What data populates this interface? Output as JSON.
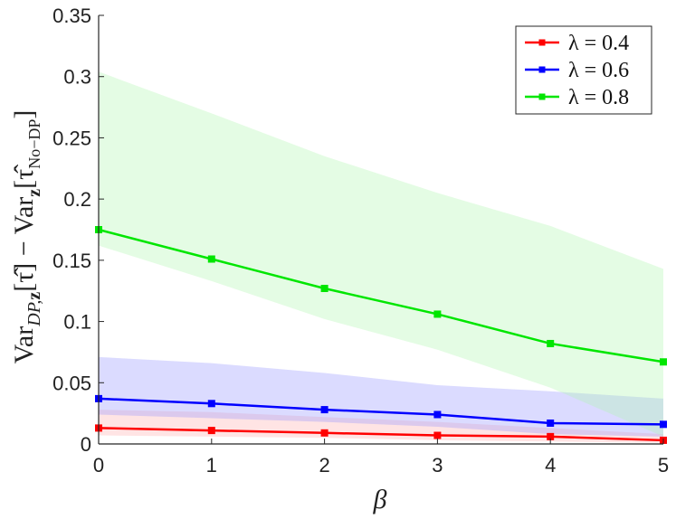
{
  "chart_data": {
    "type": "line",
    "xlabel": "β",
    "ylabel": "Var_{DP,z}[τ̂] − Var_z[τ̂_{No−DP}]",
    "ylabel_parts": {
      "main1": "Var",
      "sub1": "DP,",
      "sub1b": "z",
      "mid": "[τ̂] − Var",
      "sub2": "z",
      "main2": "[τ̂",
      "sub3": "No−DP",
      "end": "]"
    },
    "xlim": [
      0,
      5
    ],
    "ylim": [
      0,
      0.35
    ],
    "xticks": [
      0,
      1,
      2,
      3,
      4,
      5
    ],
    "xtick_labels": [
      "0",
      "1",
      "2",
      "3",
      "4",
      "5"
    ],
    "yticks": [
      0,
      0.05,
      0.1,
      0.15,
      0.2,
      0.25,
      0.3,
      0.35
    ],
    "ytick_labels": [
      "0",
      "0.05",
      "0.1",
      "0.15",
      "0.2",
      "0.25",
      "0.3",
      "0.35"
    ],
    "grid": false,
    "legend_position": "top-right",
    "x": [
      0,
      1,
      2,
      3,
      4,
      5
    ],
    "series": [
      {
        "name": "λ = 0.4",
        "color": "#ff0000",
        "band_color": "#ffb3b3",
        "values": [
          0.013,
          0.011,
          0.009,
          0.007,
          0.006,
          0.003
        ],
        "lower": [
          0.007,
          0.006,
          0.005,
          0.003,
          0.002,
          0.001
        ],
        "upper": [
          0.028,
          0.026,
          0.022,
          0.018,
          0.013,
          0.008
        ]
      },
      {
        "name": "λ = 0.6",
        "color": "#0000ff",
        "band_color": "#9999ff",
        "values": [
          0.037,
          0.033,
          0.028,
          0.024,
          0.017,
          0.016
        ],
        "lower": [
          0.024,
          0.021,
          0.018,
          0.014,
          0.008,
          0.006
        ],
        "upper": [
          0.071,
          0.066,
          0.058,
          0.048,
          0.043,
          0.037
        ]
      },
      {
        "name": "λ = 0.8",
        "color": "#00e600",
        "band_color": "#b3f5b3",
        "values": [
          0.175,
          0.151,
          0.127,
          0.106,
          0.082,
          0.067
        ],
        "lower": [
          0.162,
          0.133,
          0.102,
          0.077,
          0.046,
          0.006
        ],
        "upper": [
          0.304,
          0.27,
          0.235,
          0.205,
          0.178,
          0.143
        ]
      }
    ]
  }
}
